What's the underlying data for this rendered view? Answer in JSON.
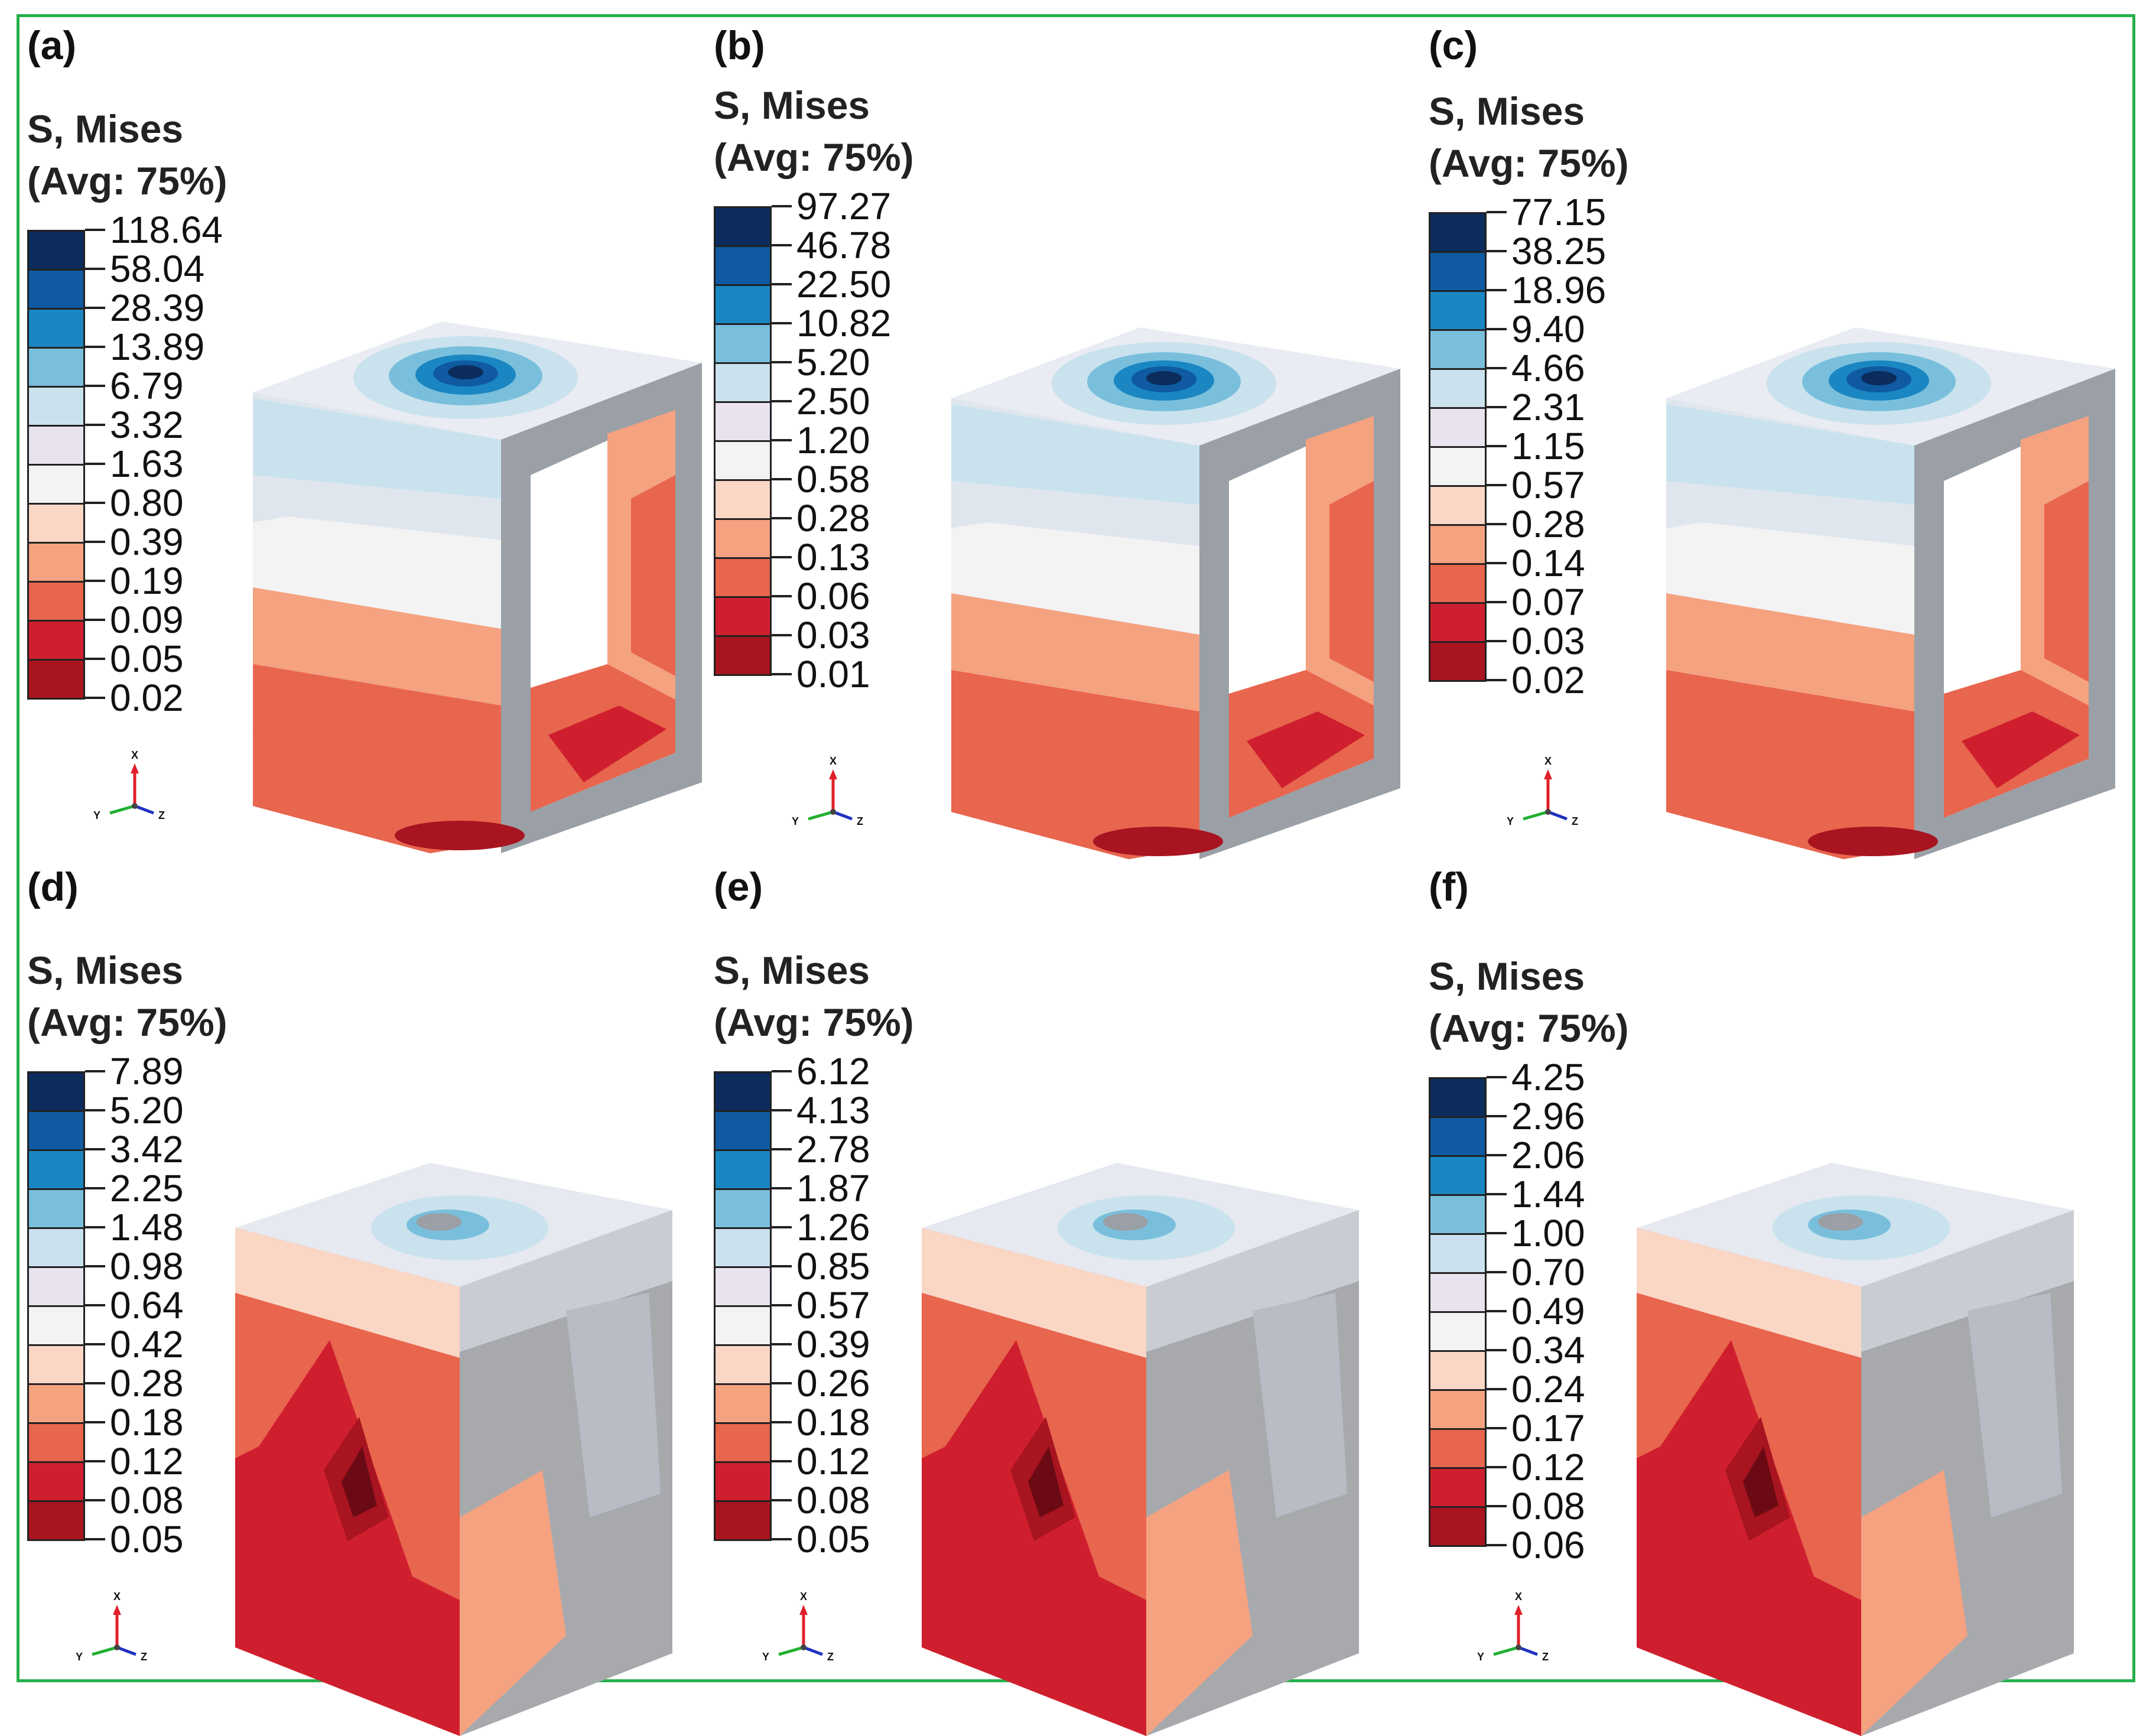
{
  "panels": [
    {
      "label": "(a)",
      "type": "frame",
      "values": [
        "118.64",
        "58.04",
        "28.39",
        "13.89",
        "6.79",
        "3.32",
        "1.63",
        "0.80",
        "0.39",
        "0.19",
        "0.09",
        "0.05",
        "0.02"
      ]
    },
    {
      "label": "(b)",
      "type": "frame",
      "values": [
        "97.27",
        "46.78",
        "22.50",
        "10.82",
        "5.20",
        "2.50",
        "1.20",
        "0.58",
        "0.28",
        "0.13",
        "0.06",
        "0.03",
        "0.01"
      ]
    },
    {
      "label": "(c)",
      "type": "frame",
      "values": [
        "77.15",
        "38.25",
        "18.96",
        "9.40",
        "4.66",
        "2.31",
        "1.15",
        "0.57",
        "0.28",
        "0.14",
        "0.07",
        "0.03",
        "0.02"
      ]
    },
    {
      "label": "(d)",
      "type": "solid",
      "values": [
        "7.89",
        "5.20",
        "3.42",
        "2.25",
        "1.48",
        "0.98",
        "0.64",
        "0.42",
        "0.28",
        "0.18",
        "0.12",
        "0.08",
        "0.05"
      ]
    },
    {
      "label": "(e)",
      "type": "solid",
      "values": [
        "6.12",
        "4.13",
        "2.78",
        "1.87",
        "1.26",
        "0.85",
        "0.57",
        "0.39",
        "0.26",
        "0.18",
        "0.12",
        "0.08",
        "0.05"
      ]
    },
    {
      "label": "(f)",
      "type": "solid",
      "values": [
        "4.25",
        "2.96",
        "2.06",
        "1.44",
        "1.00",
        "0.70",
        "0.49",
        "0.34",
        "0.24",
        "0.17",
        "0.12",
        "0.08",
        "0.06"
      ]
    }
  ],
  "legend_title_line1": "S, Mises",
  "legend_title_line2": "(Avg: 75%)",
  "legend_colors": [
    "#0b2c5c",
    "#0f5aa0",
    "#1a86c2",
    "#79bfdc",
    "#c9e2ee",
    "#e9e3ef",
    "#f3f3f3",
    "#fad6c5",
    "#f5a281",
    "#e8654e",
    "#cf1f2e",
    "#a8141f",
    "#6b0a14"
  ],
  "axis_labels": {
    "x": "X",
    "y": "Y",
    "z": "Z"
  },
  "colors": {
    "border": "#25b04b"
  }
}
